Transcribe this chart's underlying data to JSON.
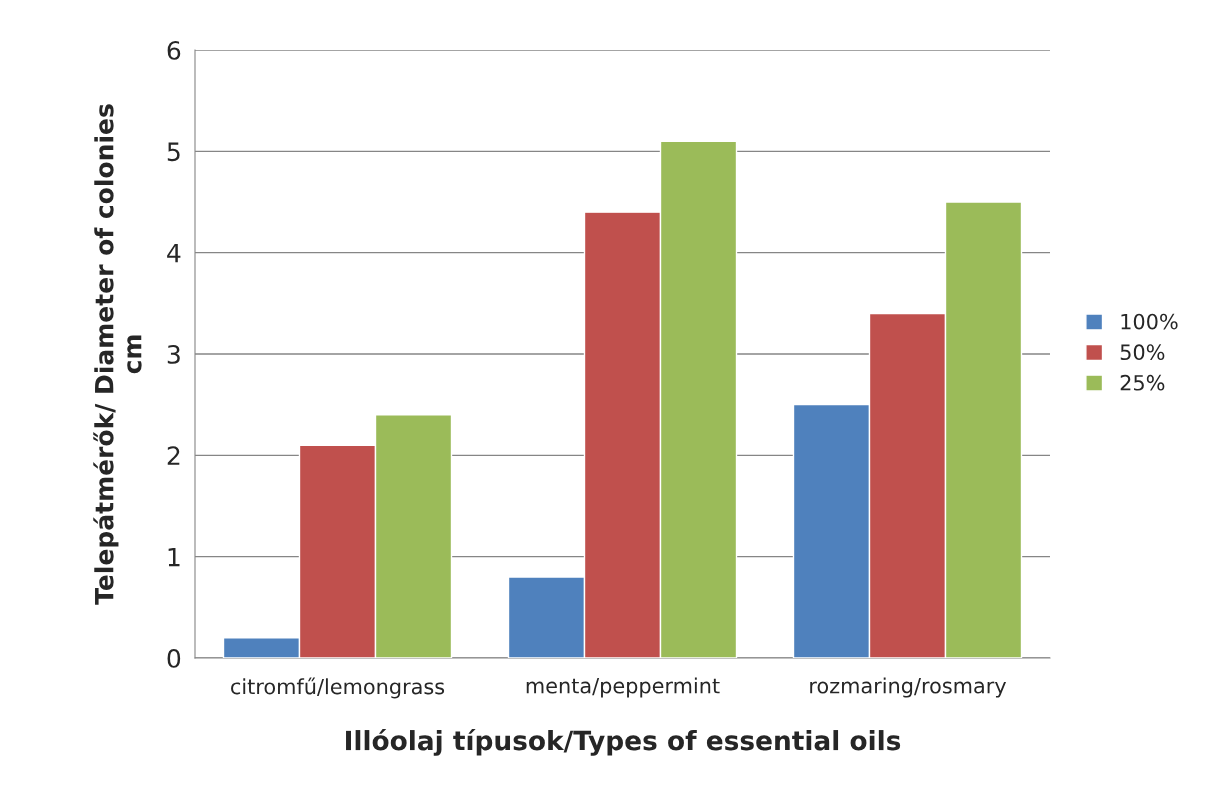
{
  "chart_data": {
    "type": "bar",
    "xlabel": "Illóolaj típusok/Types of essential oils",
    "ylabel": "Telepátmérők/ Diameter of colonies\ncm",
    "categories": [
      "citromfű/lemongrass",
      "menta/peppermint",
      "rozmaring/rosmary"
    ],
    "series": [
      {
        "name": "100%",
        "color": "#4f81bd",
        "values": [
          0.2,
          0.8,
          2.5
        ]
      },
      {
        "name": "50%",
        "color": "#c0504d",
        "values": [
          2.1,
          4.4,
          3.4
        ]
      },
      {
        "name": "25%",
        "color": "#9bbb59",
        "values": [
          2.4,
          5.1,
          4.5
        ]
      }
    ],
    "ylim": [
      0,
      6
    ],
    "yticks": [
      0,
      1,
      2,
      3,
      4,
      5,
      6
    ],
    "grid": "y",
    "legend": "right"
  }
}
